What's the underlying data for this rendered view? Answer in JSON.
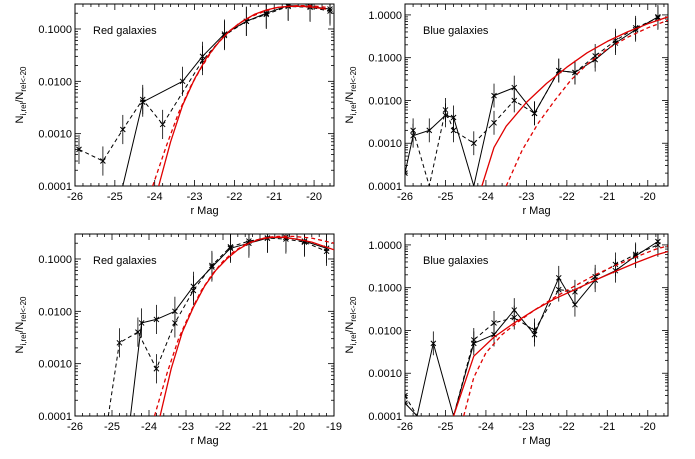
{
  "chart_data": [
    {
      "type": "line",
      "label": "Red galaxies",
      "xlabel": "r Mag",
      "ylabel": [
        "N",
        "i,rel",
        "/N",
        "rel<-20"
      ],
      "xlim": [
        -26,
        -19.5
      ],
      "ylim": [
        0.0001,
        0.3
      ],
      "yscale": "log",
      "xticks": [
        -26,
        -25,
        -24,
        -23,
        -22,
        -21,
        -20
      ],
      "yticks": [
        0.0001,
        0.001,
        0.01,
        0.1
      ],
      "ytick_labels": [
        "0.0001",
        "0.0010",
        "0.0100",
        "0.1000"
      ],
      "series": [
        {
          "style": "solid",
          "color": "#000000",
          "x": [
            -24.8,
            -24.3,
            -23.3,
            -22.8,
            -22.25,
            -21.7,
            -21.2,
            -20.65,
            -20.1,
            -19.6
          ],
          "y": [
            0.0001,
            0.004,
            0.01,
            0.03,
            0.08,
            0.14,
            0.2,
            0.28,
            0.27,
            0.24
          ]
        },
        {
          "style": "dashed",
          "color": "#000000",
          "x": [
            -25.9,
            -25.3,
            -24.8,
            -24.3,
            -23.8,
            -22.8,
            -22.25,
            -21.7,
            -21.2,
            -20.65,
            -20.1,
            -19.6
          ],
          "y": [
            0.0005,
            0.0003,
            0.0012,
            0.0045,
            0.0015,
            0.025,
            0.075,
            0.14,
            0.19,
            0.27,
            0.26,
            0.22
          ]
        },
        {
          "style": "solid",
          "color": "#e00000",
          "x": [
            -23.9,
            -23.6,
            -23.3,
            -23.0,
            -22.7,
            -22.4,
            -22.1,
            -21.8,
            -21.5,
            -21.2,
            -20.9,
            -20.6,
            -20.3,
            -20.0,
            -19.7
          ],
          "y": [
            0.0001,
            0.0007,
            0.0035,
            0.011,
            0.028,
            0.055,
            0.095,
            0.14,
            0.19,
            0.23,
            0.26,
            0.27,
            0.27,
            0.26,
            0.24
          ]
        },
        {
          "style": "dashed",
          "color": "#e00000",
          "x": [
            -24.05,
            -23.7,
            -23.4,
            -23.1,
            -22.8,
            -22.5,
            -22.2,
            -21.9,
            -21.6,
            -21.3,
            -21.0,
            -20.7,
            -20.4,
            -20.1,
            -19.7
          ],
          "y": [
            0.0001,
            0.0006,
            0.0025,
            0.008,
            0.02,
            0.045,
            0.08,
            0.125,
            0.17,
            0.21,
            0.25,
            0.27,
            0.28,
            0.28,
            0.26
          ]
        }
      ]
    },
    {
      "type": "line",
      "label": "Blue galaxies",
      "xlabel": "r Mag",
      "ylabel": [
        "N",
        "i,rel",
        "/N",
        "rel<-20"
      ],
      "xlim": [
        -26,
        -19.5
      ],
      "ylim": [
        0.0001,
        1.8
      ],
      "yscale": "log",
      "xticks": [
        -26,
        -25,
        -24,
        -23,
        -22,
        -21,
        -20
      ],
      "yticks": [
        0.0001,
        0.001,
        0.01,
        0.1,
        1.0
      ],
      "ytick_labels": [
        "0.0001",
        "0.0010",
        "0.0100",
        "0.1000",
        "1.0000"
      ],
      "series": [
        {
          "style": "solid",
          "color": "#000000",
          "x": [
            -26.0,
            -25.8,
            -25.4,
            -25.0,
            -24.8,
            -24.3,
            -23.8,
            -23.3,
            -22.8,
            -22.2,
            -21.8,
            -21.3,
            -20.8,
            -20.3,
            -19.75
          ],
          "y": [
            0.0002,
            0.0015,
            0.002,
            0.0045,
            0.004,
            0.0001,
            0.013,
            0.02,
            0.005,
            0.05,
            0.045,
            0.09,
            0.22,
            0.45,
            0.9
          ]
        },
        {
          "style": "dashed",
          "color": "#000000",
          "x": [
            -25.8,
            -25.4,
            -25.0,
            -24.8,
            -24.3,
            -23.8,
            -23.3,
            -22.8,
            -22.2,
            -21.8,
            -21.3,
            -20.8,
            -20.3,
            -19.75
          ],
          "y": [
            0.002,
            0.0001,
            0.006,
            0.002,
            0.001,
            0.003,
            0.01,
            0.005,
            0.05,
            0.045,
            0.11,
            0.25,
            0.5,
            0.85
          ]
        },
        {
          "style": "solid",
          "color": "#e00000",
          "x": [
            -24.1,
            -23.8,
            -23.5,
            -23.0,
            -22.5,
            -22.0,
            -21.5,
            -21.0,
            -20.5,
            -20.0,
            -19.5
          ],
          "y": [
            0.0001,
            0.0008,
            0.0025,
            0.009,
            0.025,
            0.06,
            0.13,
            0.24,
            0.4,
            0.62,
            0.9
          ]
        },
        {
          "style": "dashed",
          "color": "#e00000",
          "x": [
            -23.5,
            -23.1,
            -22.7,
            -22.3,
            -21.9,
            -21.5,
            -21.0,
            -20.5,
            -20.0,
            -19.5
          ],
          "y": [
            0.0001,
            0.0007,
            0.003,
            0.01,
            0.03,
            0.07,
            0.16,
            0.3,
            0.5,
            0.75
          ]
        }
      ]
    },
    {
      "type": "line",
      "label": "Red galaxies",
      "xlabel": "r Mag",
      "ylabel": [
        "N",
        "i,rel",
        "/N",
        "rel<-20"
      ],
      "xlim": [
        -26,
        -19
      ],
      "ylim": [
        0.0001,
        0.3
      ],
      "yscale": "log",
      "xticks": [
        -26,
        -25,
        -24,
        -23,
        -22,
        -21,
        -20,
        -19
      ],
      "yticks": [
        0.0001,
        0.001,
        0.01,
        0.1
      ],
      "ytick_labels": [
        "0.0001",
        "0.0010",
        "0.0100",
        "0.1000"
      ],
      "series": [
        {
          "style": "solid",
          "color": "#000000",
          "x": [
            -24.5,
            -24.2,
            -23.8,
            -23.3,
            -22.8,
            -22.3,
            -21.8,
            -21.3,
            -20.8,
            -20.3,
            -19.8,
            -19.2
          ],
          "y": [
            0.0001,
            0.006,
            0.007,
            0.01,
            0.03,
            0.07,
            0.16,
            0.2,
            0.25,
            0.26,
            0.22,
            0.16
          ]
        },
        {
          "style": "dashed",
          "color": "#000000",
          "x": [
            -25.1,
            -24.8,
            -24.3,
            -23.8,
            -23.3,
            -22.8,
            -22.3,
            -21.8,
            -21.3,
            -20.8,
            -20.3,
            -19.8,
            -19.2
          ],
          "y": [
            0.0001,
            0.0025,
            0.004,
            0.0008,
            0.006,
            0.025,
            0.075,
            0.17,
            0.22,
            0.25,
            0.24,
            0.21,
            0.14
          ]
        },
        {
          "style": "solid",
          "color": "#e00000",
          "x": [
            -23.7,
            -23.4,
            -23.1,
            -22.8,
            -22.5,
            -22.2,
            -21.9,
            -21.6,
            -21.3,
            -21.0,
            -20.7,
            -20.4,
            -20.0,
            -19.6,
            -19.0
          ],
          "y": [
            0.0001,
            0.0008,
            0.004,
            0.012,
            0.03,
            0.06,
            0.1,
            0.15,
            0.2,
            0.24,
            0.26,
            0.26,
            0.24,
            0.21,
            0.15
          ]
        },
        {
          "style": "dashed",
          "color": "#e00000",
          "x": [
            -23.85,
            -23.5,
            -23.2,
            -22.9,
            -22.6,
            -22.3,
            -22.0,
            -21.7,
            -21.4,
            -21.1,
            -20.8,
            -20.5,
            -20.1,
            -19.6,
            -19.0
          ],
          "y": [
            0.0001,
            0.0007,
            0.003,
            0.009,
            0.024,
            0.05,
            0.09,
            0.14,
            0.19,
            0.23,
            0.26,
            0.27,
            0.27,
            0.25,
            0.2
          ]
        }
      ]
    },
    {
      "type": "line",
      "label": "Blue galaxies",
      "xlabel": "r Mag",
      "ylabel": [
        "N",
        "i,rel",
        "/N",
        "rel<-20"
      ],
      "xlim": [
        -26,
        -19.5
      ],
      "ylim": [
        0.0001,
        1.8
      ],
      "yscale": "log",
      "xticks": [
        -26,
        -25,
        -24,
        -23,
        -22,
        -21,
        -20
      ],
      "yticks": [
        0.0001,
        0.001,
        0.01,
        0.1,
        1.0
      ],
      "ytick_labels": [
        "0.0001",
        "0.0010",
        "0.0100",
        "0.1000",
        "1.0000"
      ],
      "series": [
        {
          "style": "solid",
          "color": "#000000",
          "x": [
            -26.0,
            -25.7,
            -25.3,
            -24.8,
            -24.3,
            -23.8,
            -23.3,
            -22.8,
            -22.2,
            -21.8,
            -21.3,
            -20.8,
            -20.3,
            -19.75
          ],
          "y": [
            0.0002,
            0.0001,
            0.005,
            0.0001,
            0.005,
            0.008,
            0.03,
            0.008,
            0.17,
            0.04,
            0.15,
            0.25,
            0.55,
            1.2
          ]
        },
        {
          "style": "dashed",
          "color": "#000000",
          "x": [
            -26.0,
            -25.7,
            -25.3,
            -24.8,
            -24.3,
            -23.8,
            -23.3,
            -22.8,
            -22.2,
            -21.8,
            -21.3,
            -20.8,
            -20.3,
            -19.75
          ],
          "y": [
            0.0003,
            0.0001,
            0.0001,
            0.0001,
            0.006,
            0.015,
            0.02,
            0.01,
            0.09,
            0.08,
            0.18,
            0.35,
            0.6,
            1.0
          ]
        },
        {
          "style": "solid",
          "color": "#e00000",
          "x": [
            -24.8,
            -24.3,
            -23.8,
            -23.3,
            -22.8,
            -22.3,
            -21.8,
            -21.3,
            -20.8,
            -20.3,
            -19.8,
            -19.5
          ],
          "y": [
            0.0001,
            0.0025,
            0.007,
            0.015,
            0.03,
            0.055,
            0.09,
            0.15,
            0.24,
            0.38,
            0.58,
            0.7
          ]
        },
        {
          "style": "dashed",
          "color": "#e00000",
          "x": [
            -24.55,
            -24.3,
            -24.0,
            -23.6,
            -23.2,
            -22.8,
            -22.3,
            -21.8,
            -21.3,
            -20.8,
            -20.3,
            -19.8,
            -19.5
          ],
          "y": [
            0.0001,
            0.0008,
            0.003,
            0.008,
            0.016,
            0.03,
            0.06,
            0.11,
            0.2,
            0.33,
            0.52,
            0.8,
            0.95
          ]
        }
      ]
    }
  ]
}
